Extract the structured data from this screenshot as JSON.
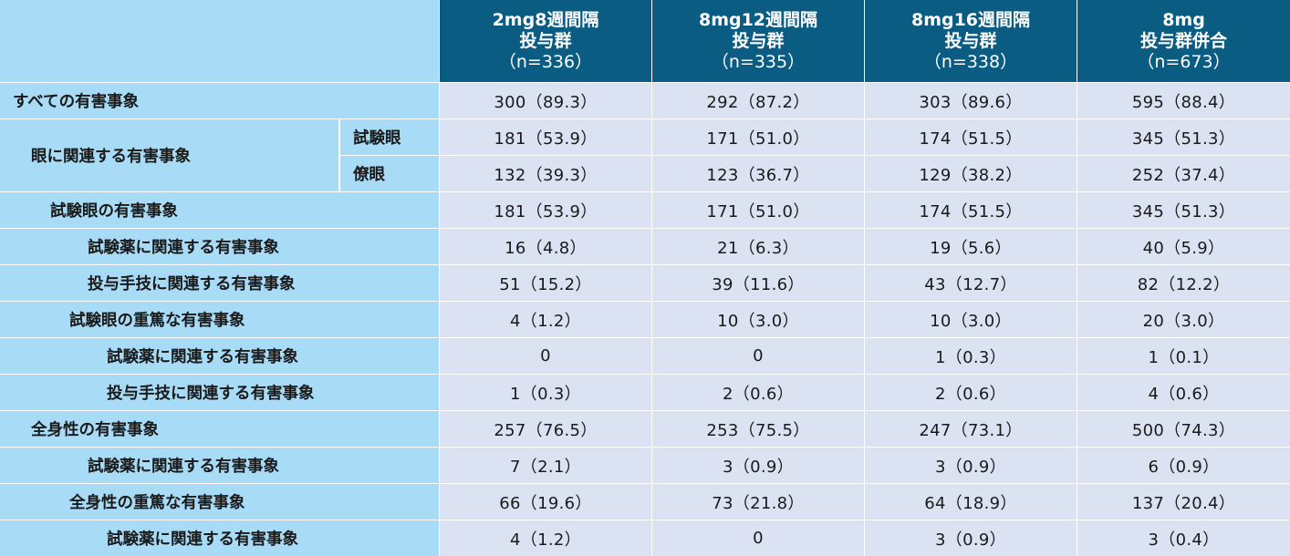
{
  "header": {
    "columns": [
      {
        "line1": "2mg8週間隔",
        "line2": "投与群",
        "count": "（n=336）"
      },
      {
        "line1": "8mg12週間隔",
        "line2": "投与群",
        "count": "（n=335）"
      },
      {
        "line1": "8mg16週間隔",
        "line2": "投与群",
        "count": "（n=338）"
      },
      {
        "line1": "8mg",
        "line2": "投与群併合",
        "count": "（n=673）"
      }
    ]
  },
  "rows": [
    {
      "label": "すべての有害事象",
      "values": [
        "300（89.3）",
        "292（87.2）",
        "303（89.6）",
        "595（88.4）"
      ]
    },
    {
      "label": "眼に関連する有害事象",
      "sub": "試験眼",
      "values": [
        "181（53.9）",
        "171（51.0）",
        "174（51.5）",
        "345（51.3）"
      ]
    },
    {
      "sub": "僚眼",
      "values": [
        "132（39.3）",
        "123（36.7）",
        "129（38.2）",
        "252（37.4）"
      ]
    },
    {
      "label": "試験眼の有害事象",
      "values": [
        "181（53.9）",
        "171（51.0）",
        "174（51.5）",
        "345（51.3）"
      ]
    },
    {
      "label": "試験薬に関連する有害事象",
      "values": [
        "16（4.8）",
        "21（6.3）",
        "19（5.6）",
        "40（5.9）"
      ]
    },
    {
      "label": "投与手技に関連する有害事象",
      "values": [
        "51（15.2）",
        "39（11.6）",
        "43（12.7）",
        "82（12.2）"
      ]
    },
    {
      "label": "試験眼の重篤な有害事象",
      "values": [
        "4（1.2）",
        "10（3.0）",
        "10（3.0）",
        "20（3.0）"
      ]
    },
    {
      "label": "試験薬に関連する有害事象",
      "values": [
        "0",
        "0",
        "1（0.3）",
        "1（0.1）"
      ]
    },
    {
      "label": "投与手技に関連する有害事象",
      "values": [
        "1（0.3）",
        "2（0.6）",
        "2（0.6）",
        "4（0.6）"
      ]
    },
    {
      "label": "全身性の有害事象",
      "values": [
        "257（76.5）",
        "253（75.5）",
        "247（73.1）",
        "500（74.3）"
      ]
    },
    {
      "label": "試験薬に関連する有害事象",
      "values": [
        "7（2.1）",
        "3（0.9）",
        "3（0.9）",
        "6（0.9）"
      ]
    },
    {
      "label": "全身性の重篤な有害事象",
      "values": [
        "66（19.6）",
        "73（21.8）",
        "64（18.9）",
        "137（20.4）"
      ]
    },
    {
      "label": "試験薬に関連する有害事象",
      "values": [
        "4（1.2）",
        "0",
        "3（0.9）",
        "3（0.4）"
      ]
    }
  ]
}
